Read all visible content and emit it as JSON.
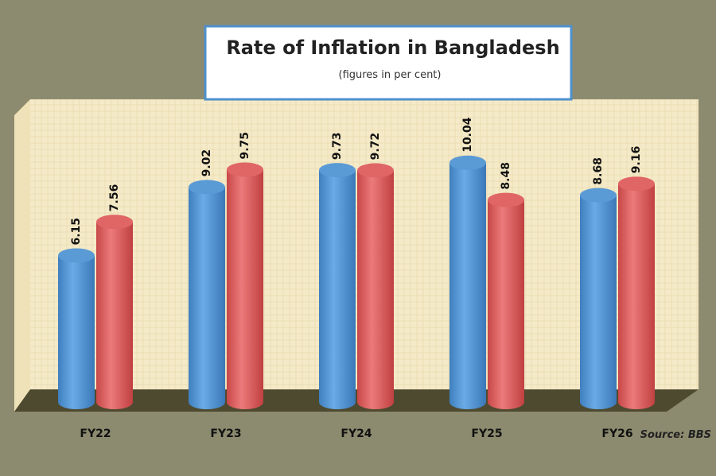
{
  "chart_data": {
    "type": "bar",
    "title": "Rate of Inflation in Bangladesh",
    "subtitle": "(figures in per cent)",
    "source": "Source: BBS",
    "categories": [
      "FY22",
      "FY23",
      "FY24",
      "FY25",
      "FY26"
    ],
    "series": [
      {
        "color": "#5b9bd5",
        "values": [
          6.15,
          9.02,
          9.73,
          10.04,
          8.68
        ]
      },
      {
        "color": "#e06666",
        "values": [
          7.56,
          9.75,
          9.72,
          8.48,
          9.16
        ]
      }
    ]
  }
}
